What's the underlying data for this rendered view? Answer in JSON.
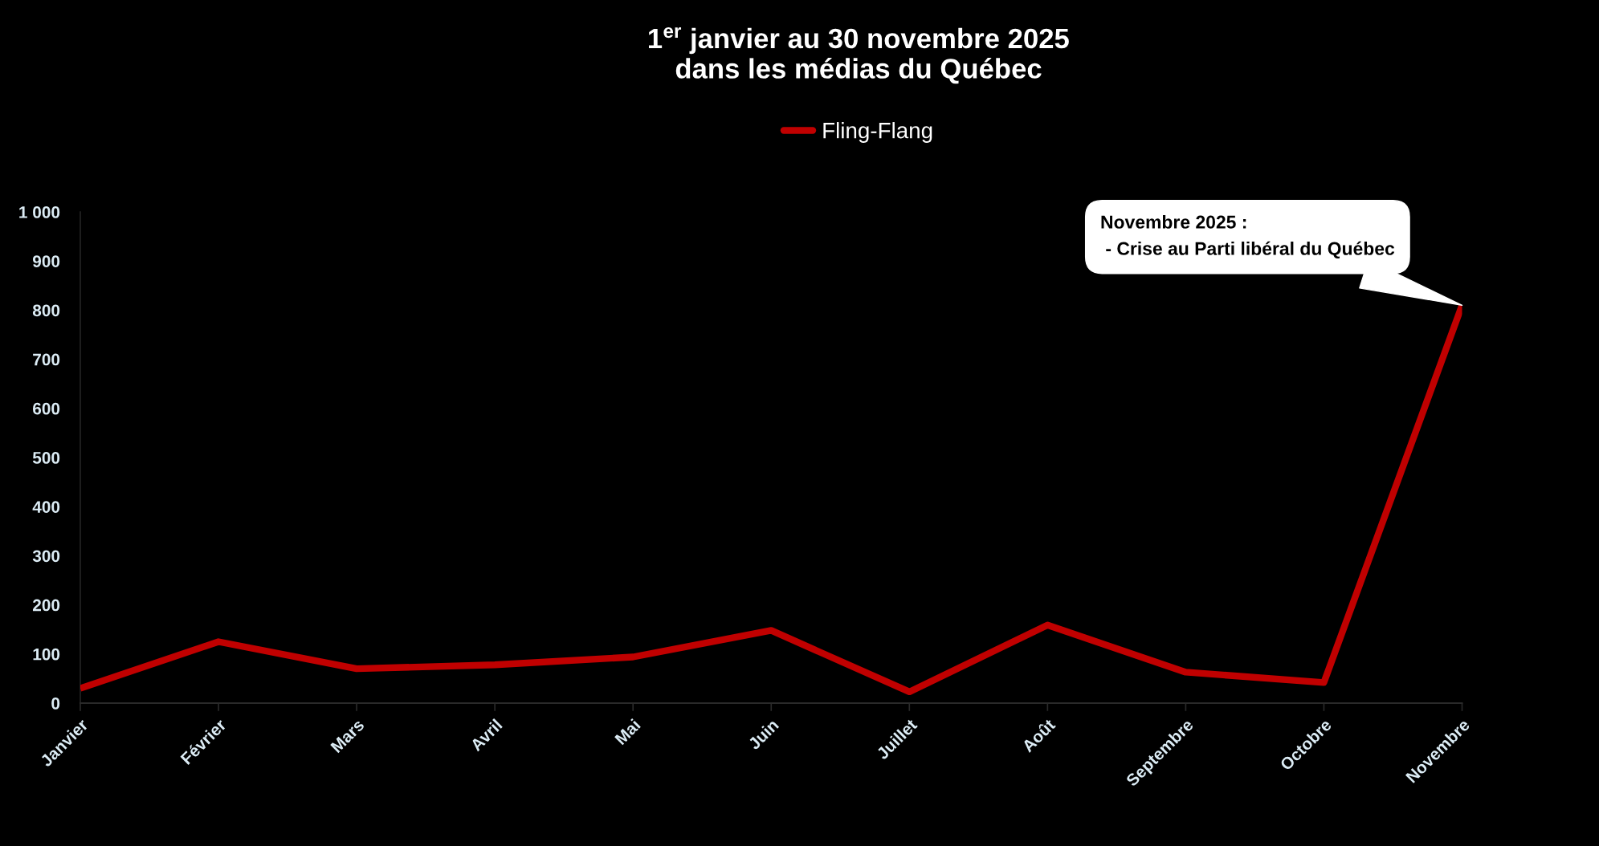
{
  "chart_data": {
    "type": "line",
    "title": "1$^{er}$ janvier au 30 novembre 2025\ndans les médias du Québec",
    "categories": [
      "Janvier",
      "Février",
      "Mars",
      "Avril",
      "Mai",
      "Juin",
      "Juillet",
      "Août",
      "Septembre",
      "Octobre",
      "Novembre"
    ],
    "series": [
      {
        "name": "Fling-Flang",
        "color": "#c00000",
        "values": [
          30,
          125,
          70,
          78,
          94,
          148,
          23,
          159,
          63,
          42,
          810
        ]
      }
    ],
    "ylim": [
      0,
      1000
    ],
    "yticks": [
      0,
      100,
      200,
      300,
      400,
      500,
      600,
      700,
      800,
      900,
      {
        "value": 1000,
        "label": "1 000"
      }
    ],
    "grid": false,
    "legend": "top",
    "line_style": "solid",
    "annotations": [
      {
        "text": "Novembre 2025 :\n - Crise au Parti libéral du Québec",
        "x": "Novembre",
        "y": 810
      }
    ]
  }
}
